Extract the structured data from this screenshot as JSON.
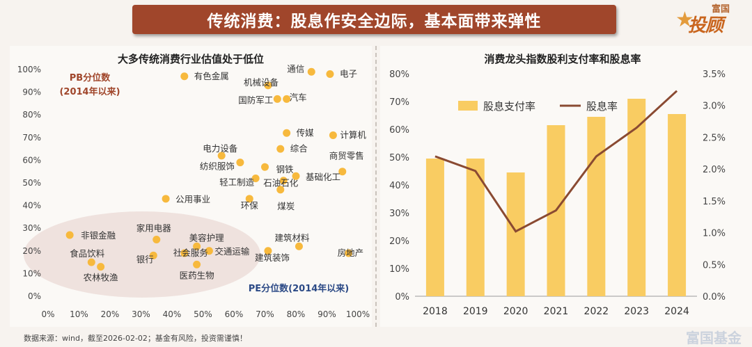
{
  "banner": {
    "title": "传统消费：股息作安全边际，基本面带来弹性"
  },
  "brand": {
    "top": "富国",
    "main": "投顾"
  },
  "source": "数据来源：wind，截至2026-02-02；基金有风险，投资需谨慎！",
  "watermark": "富国基金",
  "colors": {
    "banner": "#a0462b",
    "point": "#f7b93d",
    "bar": "#f9cc62",
    "line": "#8a4a32",
    "label_brown": "#a0462b",
    "label_blue": "#2c4a86"
  },
  "chart_data": [
    {
      "type": "scatter",
      "title": "大多传统消费行业估值处于低位",
      "xlabel": "PE分位数(2014年以来)",
      "ylabel": "PB分位数\n(2014年以来)",
      "xlim": [
        0,
        100
      ],
      "ylim": [
        0,
        100
      ],
      "x_ticks": [
        "0%",
        "10%",
        "20%",
        "30%",
        "40%",
        "50%",
        "60%",
        "70%",
        "80%",
        "90%",
        "100%"
      ],
      "y_ticks": [
        "0%",
        "10%",
        "20%",
        "30%",
        "40%",
        "50%",
        "60%",
        "70%",
        "80%",
        "90%",
        "100%"
      ],
      "grid": false,
      "points": [
        {
          "label": "有色金属",
          "x": 44,
          "y": 97
        },
        {
          "label": "通信",
          "x": 85,
          "y": 99
        },
        {
          "label": "电子",
          "x": 91,
          "y": 98
        },
        {
          "label": "机械设备",
          "x": 71,
          "y": 93
        },
        {
          "label": "国防军工",
          "x": 74,
          "y": 87
        },
        {
          "label": "汽车",
          "x": 77,
          "y": 87
        },
        {
          "label": "传媒",
          "x": 77,
          "y": 72
        },
        {
          "label": "计算机",
          "x": 92,
          "y": 71
        },
        {
          "label": "综合",
          "x": 75,
          "y": 65
        },
        {
          "label": "电力设备",
          "x": 56,
          "y": 62
        },
        {
          "label": "纺织服饰",
          "x": 62,
          "y": 59
        },
        {
          "label": "钢铁",
          "x": 70,
          "y": 57
        },
        {
          "label": "商贸零售",
          "x": 95,
          "y": 55
        },
        {
          "label": "轻工制造",
          "x": 67,
          "y": 52
        },
        {
          "label": "石油石化",
          "x": 76,
          "y": 51
        },
        {
          "label": "基础化工",
          "x": 80,
          "y": 53
        },
        {
          "label": "公用事业",
          "x": 38,
          "y": 43
        },
        {
          "label": "环保",
          "x": 65,
          "y": 43
        },
        {
          "label": "煤炭",
          "x": 75,
          "y": 47
        },
        {
          "label": "非银金融",
          "x": 7,
          "y": 27
        },
        {
          "label": "家用电器",
          "x": 35,
          "y": 25
        },
        {
          "label": "美容护理",
          "x": 48,
          "y": 22
        },
        {
          "label": "交通运输",
          "x": 52,
          "y": 20
        },
        {
          "label": "建筑材料",
          "x": 81,
          "y": 22
        },
        {
          "label": "食品饮料",
          "x": 14,
          "y": 15
        },
        {
          "label": "银行",
          "x": 34,
          "y": 18
        },
        {
          "label": "社会服务",
          "x": 44,
          "y": 19
        },
        {
          "label": "建筑装饰",
          "x": 71,
          "y": 20
        },
        {
          "label": "房地产",
          "x": 97,
          "y": 19
        },
        {
          "label": "农林牧渔",
          "x": 17,
          "y": 13
        },
        {
          "label": "医药生物",
          "x": 48,
          "y": 14
        }
      ]
    },
    {
      "type": "bar",
      "title": "消费龙头指数股利支付率和股息率",
      "categories": [
        "2018",
        "2019",
        "2020",
        "2021",
        "2022",
        "2023",
        "2024"
      ],
      "ylim": [
        0,
        80
      ],
      "y2lim": [
        0,
        3.5
      ],
      "y_ticks": [
        "0%",
        "10%",
        "20%",
        "30%",
        "40%",
        "50%",
        "60%",
        "70%",
        "80%"
      ],
      "y2_ticks": [
        "0.0%",
        "0.5%",
        "1.0%",
        "1.5%",
        "2.0%",
        "2.5%",
        "3.0%",
        "3.5%"
      ],
      "legend": "top",
      "series": [
        {
          "name": "股息支付率",
          "type": "bar",
          "axis": "left",
          "values": [
            49.5,
            49.5,
            44.5,
            61.5,
            64.5,
            71,
            65.5
          ]
        },
        {
          "name": "股息率",
          "type": "line",
          "axis": "right",
          "values": [
            2.2,
            1.97,
            1.02,
            1.35,
            2.2,
            2.65,
            3.23
          ]
        }
      ]
    }
  ]
}
